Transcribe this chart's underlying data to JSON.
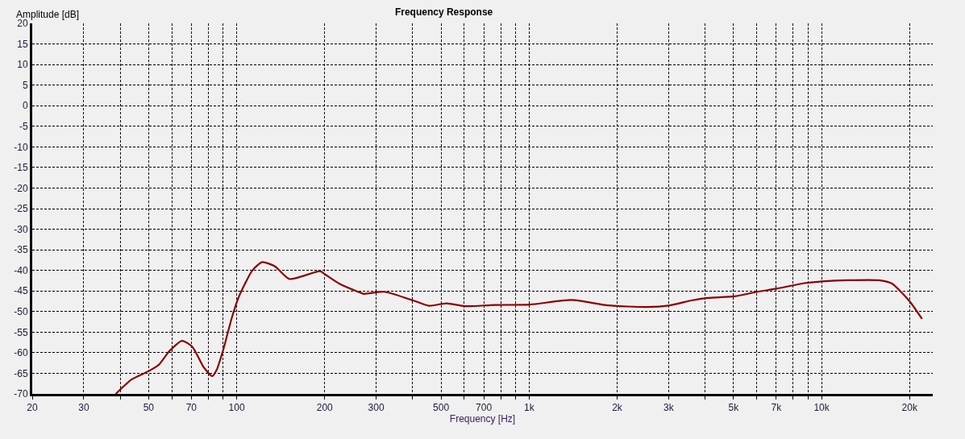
{
  "chart_data": {
    "type": "line",
    "title": "Frequency Response",
    "xlabel": "Frequency [Hz]",
    "ylabel": "Amplitude [dB]",
    "log": "x",
    "grid": true,
    "marker": "none",
    "line_style": "solid",
    "xlim": [
      20,
      24000
    ],
    "ylim": [
      -70,
      20
    ],
    "xticks": [
      20,
      30,
      {
        "value": 40,
        "label": null
      },
      50,
      {
        "value": 60,
        "label": null
      },
      70,
      {
        "value": 80,
        "label": null
      },
      {
        "value": 90,
        "label": null
      },
      100,
      200,
      300,
      {
        "value": 400,
        "label": null
      },
      500,
      {
        "value": 600,
        "label": null
      },
      700,
      {
        "value": 800,
        "label": null
      },
      {
        "value": 900,
        "label": null
      },
      {
        "value": 1000,
        "label": "1k"
      },
      {
        "value": 2000,
        "label": "2k"
      },
      {
        "value": 3000,
        "label": "3k"
      },
      {
        "value": 4000,
        "label": null
      },
      {
        "value": 5000,
        "label": "5k"
      },
      {
        "value": 6000,
        "label": null
      },
      {
        "value": 7000,
        "label": "7k"
      },
      {
        "value": 8000,
        "label": null
      },
      {
        "value": 9000,
        "label": null
      },
      {
        "value": 10000,
        "label": "10k"
      },
      {
        "value": 20000,
        "label": "20k"
      }
    ],
    "yticks": [
      20,
      15,
      10,
      5,
      0,
      -5,
      -10,
      -15,
      -20,
      -25,
      -30,
      -35,
      -40,
      -45,
      -50,
      -55,
      -60,
      -65,
      -70
    ],
    "x": [
      38.6,
      43.7,
      50.2,
      54.2,
      58.9,
      65.1,
      70.6,
      77.1,
      82.5,
      85.4,
      90.3,
      96.0,
      101.6,
      113.2,
      122.3,
      135,
      151.5,
      193,
      201,
      224,
      260,
      272,
      320,
      405,
      455,
      522,
      605,
      763,
      1004,
      1398,
      1862,
      2513,
      3031,
      3590,
      4078,
      5038,
      6028,
      7070,
      8740,
      10010,
      12270,
      15650,
      17400,
      20000,
      22060
    ],
    "series": [
      {
        "color": "#8b0000",
        "values": [
          -70,
          -66.5,
          -64.4,
          -62.9,
          -59.6,
          -57.1,
          -58.6,
          -63.5,
          -65.7,
          -64.2,
          -58.9,
          -51.8,
          -46.5,
          -40.0,
          -38.0,
          -39.0,
          -42.1,
          -40.2,
          -41.0,
          -43.2,
          -45.2,
          -45.7,
          -45.2,
          -47.4,
          -48.6,
          -48.0,
          -48.7,
          -48.4,
          -48.3,
          -47.2,
          -48.5,
          -48.9,
          -48.5,
          -47.3,
          -46.7,
          -46.3,
          -45.2,
          -44.4,
          -43.1,
          -42.7,
          -42.4,
          -42.4,
          -43.2,
          -47.5,
          -51.8
        ]
      }
    ]
  }
}
